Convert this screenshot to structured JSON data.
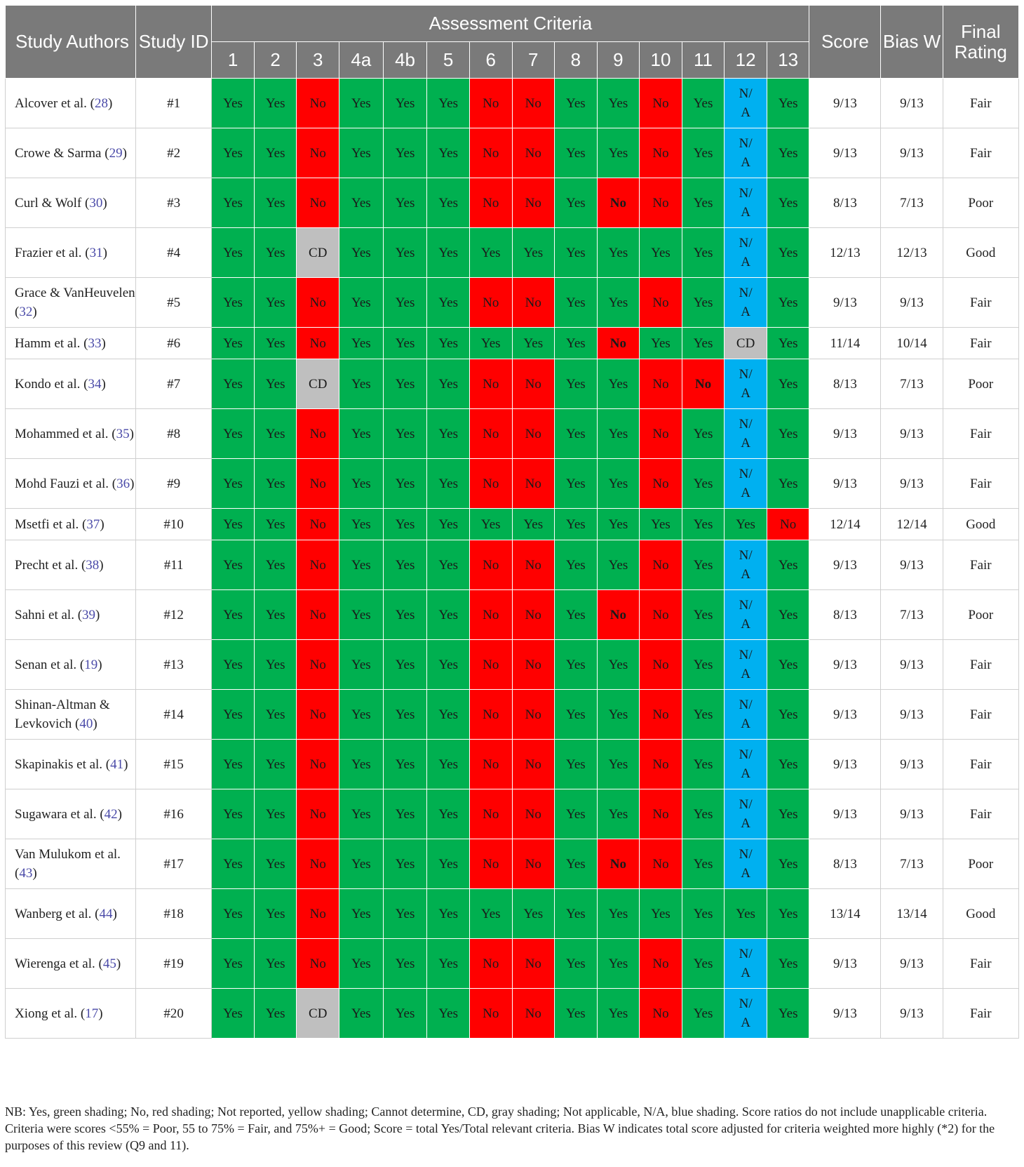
{
  "header": {
    "study_authors": "Study Authors",
    "study_id": "Study ID",
    "assessment_criteria": "Assessment Criteria",
    "score": "Score",
    "bias_w": "Bias W",
    "final_rating": "Final Rating",
    "criteria": [
      "1",
      "2",
      "3",
      "4a",
      "4b",
      "5",
      "6",
      "7",
      "8",
      "9",
      "10",
      "11",
      "12",
      "13"
    ]
  },
  "rows": [
    {
      "author": "Alcover et al. (",
      "ref": "28",
      "id": "#1",
      "c": [
        "Yes",
        "Yes",
        "No",
        "Yes",
        "Yes",
        "Yes",
        "No",
        "No",
        "Yes",
        "Yes",
        "No",
        "Yes",
        "N/A",
        "Yes"
      ],
      "score": "9/13",
      "bias": "9/13",
      "rating": "Fair"
    },
    {
      "author": "Crowe & Sarma (",
      "ref": "29",
      "id": "#2",
      "c": [
        "Yes",
        "Yes",
        "No",
        "Yes",
        "Yes",
        "Yes",
        "No",
        "No",
        "Yes",
        "Yes",
        "No",
        "Yes",
        "N/A",
        "Yes"
      ],
      "score": "9/13",
      "bias": "9/13",
      "rating": "Fair"
    },
    {
      "author": "Curl & Wolf (",
      "ref": "30",
      "id": "#3",
      "c": [
        "Yes",
        "Yes",
        "No",
        "Yes",
        "Yes",
        "Yes",
        "No",
        "No",
        "Yes",
        "No*",
        "No",
        "Yes",
        "N/A",
        "Yes"
      ],
      "score": "8/13",
      "bias": "7/13",
      "rating": "Poor"
    },
    {
      "author": "Frazier et al. (",
      "ref": "31",
      "id": "#4",
      "c": [
        "Yes",
        "Yes",
        "CD",
        "Yes",
        "Yes",
        "Yes",
        "Yes",
        "Yes",
        "Yes",
        "Yes",
        "Yes",
        "Yes",
        "N/A",
        "Yes"
      ],
      "score": "12/13",
      "bias": "12/13",
      "rating": "Good"
    },
    {
      "author": "Grace & VanHeuvelen (",
      "ref": "32",
      "id": "#5",
      "c": [
        "Yes",
        "Yes",
        "No",
        "Yes",
        "Yes",
        "Yes",
        "No",
        "No",
        "Yes",
        "Yes",
        "No",
        "Yes",
        "N/A",
        "Yes"
      ],
      "score": "9/13",
      "bias": "9/13",
      "rating": "Fair"
    },
    {
      "author": "Hamm et al. (",
      "ref": "33",
      "id": "#6",
      "c": [
        "Yes",
        "Yes",
        "No",
        "Yes",
        "Yes",
        "Yes",
        "Yes",
        "Yes",
        "Yes",
        "No*",
        "Yes",
        "Yes",
        "CD",
        "Yes"
      ],
      "score": "11/14",
      "bias": "10/14",
      "rating": "Fair"
    },
    {
      "author": "Kondo et al. (",
      "ref": "34",
      "id": "#7",
      "c": [
        "Yes",
        "Yes",
        "CD",
        "Yes",
        "Yes",
        "Yes",
        "No",
        "No",
        "Yes",
        "Yes",
        "No",
        "No*",
        "N/A",
        "Yes"
      ],
      "score": "8/13",
      "bias": "7/13",
      "rating": "Poor"
    },
    {
      "author": "Mohammed et al. (",
      "ref": "35",
      "id": "#8",
      "c": [
        "Yes",
        "Yes",
        "No",
        "Yes",
        "Yes",
        "Yes",
        "No",
        "No",
        "Yes",
        "Yes",
        "No",
        "Yes",
        "N/A",
        "Yes"
      ],
      "score": "9/13",
      "bias": "9/13",
      "rating": "Fair"
    },
    {
      "author": "Mohd Fauzi et al. (",
      "ref": "36",
      "id": "#9",
      "c": [
        "Yes",
        "Yes",
        "No",
        "Yes",
        "Yes",
        "Yes",
        "No",
        "No",
        "Yes",
        "Yes",
        "No",
        "Yes",
        "N/A",
        "Yes"
      ],
      "score": "9/13",
      "bias": "9/13",
      "rating": "Fair"
    },
    {
      "author": "Msetfi et al. (",
      "ref": "37",
      "id": "#10",
      "c": [
        "Yes",
        "Yes",
        "No",
        "Yes",
        "Yes",
        "Yes",
        "Yes",
        "Yes",
        "Yes",
        "Yes",
        "Yes",
        "Yes",
        "Yes",
        "No"
      ],
      "score": "12/14",
      "bias": "12/14",
      "rating": "Good"
    },
    {
      "author": "Precht et al. (",
      "ref": "38",
      "id": "#11",
      "c": [
        "Yes",
        "Yes",
        "No",
        "Yes",
        "Yes",
        "Yes",
        "No",
        "No",
        "Yes",
        "Yes",
        "No",
        "Yes",
        "N/A",
        "Yes"
      ],
      "score": "9/13",
      "bias": "9/13",
      "rating": "Fair"
    },
    {
      "author": "Sahni et al. (",
      "ref": "39",
      "id": "#12",
      "c": [
        "Yes",
        "Yes",
        "No",
        "Yes",
        "Yes",
        "Yes",
        "No",
        "No",
        "Yes",
        "No*",
        "No",
        "Yes",
        "N/A",
        "Yes"
      ],
      "score": "8/13",
      "bias": "7/13",
      "rating": "Poor"
    },
    {
      "author": "Senan et al. (",
      "ref": "19",
      "id": "#13",
      "c": [
        "Yes",
        "Yes",
        "No",
        "Yes",
        "Yes",
        "Yes",
        "No",
        "No",
        "Yes",
        "Yes",
        "No",
        "Yes",
        "N/A",
        "Yes"
      ],
      "score": "9/13",
      "bias": "9/13",
      "rating": "Fair"
    },
    {
      "author": "Shinan-Altman & Levkovich (",
      "ref": "40",
      "id": "#14",
      "c": [
        "Yes",
        "Yes",
        "No",
        "Yes",
        "Yes",
        "Yes",
        "No",
        "No",
        "Yes",
        "Yes",
        "No",
        "Yes",
        "N/A",
        "Yes"
      ],
      "score": "9/13",
      "bias": "9/13",
      "rating": "Fair"
    },
    {
      "author": "Skapinakis et al. (",
      "ref": "41",
      "id": "#15",
      "c": [
        "Yes",
        "Yes",
        "No",
        "Yes",
        "Yes",
        "Yes",
        "No",
        "No",
        "Yes",
        "Yes",
        "No",
        "Yes",
        "N/A",
        "Yes"
      ],
      "score": "9/13",
      "bias": "9/13",
      "rating": "Fair"
    },
    {
      "author": "Sugawara et al. (",
      "ref": "42",
      "id": "#16",
      "c": [
        "Yes",
        "Yes",
        "No",
        "Yes",
        "Yes",
        "Yes",
        "No",
        "No",
        "Yes",
        "Yes",
        "No",
        "Yes",
        "N/A",
        "Yes"
      ],
      "score": "9/13",
      "bias": "9/13",
      "rating": "Fair"
    },
    {
      "author": "Van Mulukom et al. (",
      "ref": "43",
      "id": "#17",
      "c": [
        "Yes",
        "Yes",
        "No",
        "Yes",
        "Yes",
        "Yes",
        "No",
        "No",
        "Yes",
        "No*",
        "No",
        "Yes",
        "N/A",
        "Yes"
      ],
      "score": "8/13",
      "bias": "7/13",
      "rating": "Poor"
    },
    {
      "author": "Wanberg et al. (",
      "ref": "44",
      "id": "#18",
      "c": [
        "Yes",
        "Yes",
        "No",
        "Yes",
        "Yes",
        "Yes",
        "Yes",
        "Yes",
        "Yes",
        "Yes",
        "Yes",
        "Yes",
        "Yes",
        "Yes"
      ],
      "score": "13/14",
      "bias": "13/14",
      "rating": "Good"
    },
    {
      "author": "Wierenga et al. (",
      "ref": "45",
      "id": "#19",
      "c": [
        "Yes",
        "Yes",
        "No",
        "Yes",
        "Yes",
        "Yes",
        "No",
        "No",
        "Yes",
        "Yes",
        "No",
        "Yes",
        "N/A",
        "Yes"
      ],
      "score": "9/13",
      "bias": "9/13",
      "rating": "Fair"
    },
    {
      "author": "Xiong et al. (",
      "ref": "17",
      "id": "#20",
      "c": [
        "Yes",
        "Yes",
        "CD",
        "Yes",
        "Yes",
        "Yes",
        "No",
        "No",
        "Yes",
        "Yes",
        "No",
        "Yes",
        "N/A",
        "Yes"
      ],
      "score": "9/13",
      "bias": "9/13",
      "rating": "Fair"
    }
  ],
  "footnote": "NB: Yes, green shading; No, red shading; Not reported, yellow shading; Cannot determine, CD, gray shading; Not applicable, N/A, blue shading. Score ratios do not include unapplicable criteria. Criteria were scores <55% = Poor, 55 to 75% = Fair, and 75%+ = Good; Score = total Yes/Total relevant criteria. Bias W indicates total score adjusted for criteria weighted more highly (*2) for the purposes of this review (Q9 and 11).",
  "colors": {
    "yes": "#00b050",
    "no": "#ff0000",
    "cd": "#bfbfbf",
    "na": "#00b0f0",
    "header": "#7a7a7a"
  }
}
